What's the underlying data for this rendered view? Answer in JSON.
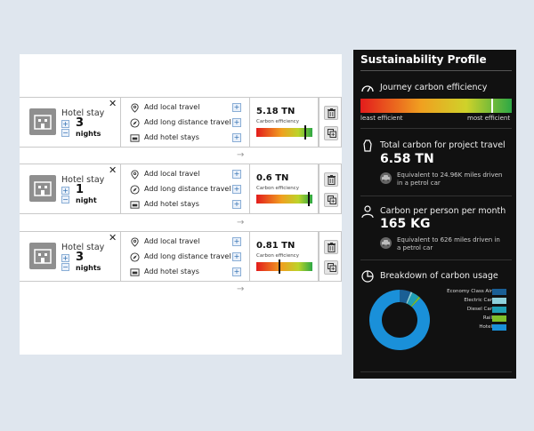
{
  "cards": [
    {
      "hotel_title": "Hotel stay",
      "nights": "3",
      "nights_label": "nights",
      "options": [
        "Add local travel",
        "Add long distance travel",
        "Add hotel stays"
      ],
      "carbon_value": "5.18 TN",
      "carbon_label": "Carbon efficiency",
      "efficiency_fraction": 0.88
    },
    {
      "hotel_title": "Hotel stay",
      "nights": "1",
      "nights_label": "night",
      "options": [
        "Add local travel",
        "Add long distance travel",
        "Add hotel stays"
      ],
      "carbon_value": "0.6 TN",
      "carbon_label": "Carbon efficiency",
      "efficiency_fraction": 0.94
    },
    {
      "hotel_title": "Hotel stay",
      "nights": "3",
      "nights_label": "nights",
      "options": [
        "Add local travel",
        "Add long distance travel",
        "Add hotel stays"
      ],
      "carbon_value": "0.81 TN",
      "carbon_label": "Carbon efficiency",
      "efficiency_fraction": 0.42
    }
  ],
  "sidebar": {
    "title": "Sustainability Profile",
    "journey": {
      "heading": "Journey carbon efficiency",
      "least_label": "least efficient",
      "most_label": "most efficient",
      "efficiency_fraction": 0.87
    },
    "total": {
      "heading": "Total carbon for project travel",
      "value": "6.58 TN",
      "equivalent": "Equivalent to 24.96K miles driven in a petrol car"
    },
    "per_person": {
      "heading": "Carbon per person per month",
      "value": "165 KG",
      "equivalent": "Equivalent to 626 miles driven in a petrol car"
    },
    "breakdown": {
      "heading": "Breakdown of carbon usage"
    }
  },
  "chart_data": {
    "type": "pie",
    "categories": [
      "Economy Class Air",
      "Electric Car",
      "Diesel Car",
      "Rail",
      "Hotel"
    ],
    "values": [
      6,
      1,
      4,
      1,
      88
    ],
    "colors": [
      "#1a5f95",
      "#8fd1dc",
      "#1f9fb5",
      "#7fbf2a",
      "#1a90d9"
    ],
    "legend_position": "top-right",
    "donut": true
  }
}
